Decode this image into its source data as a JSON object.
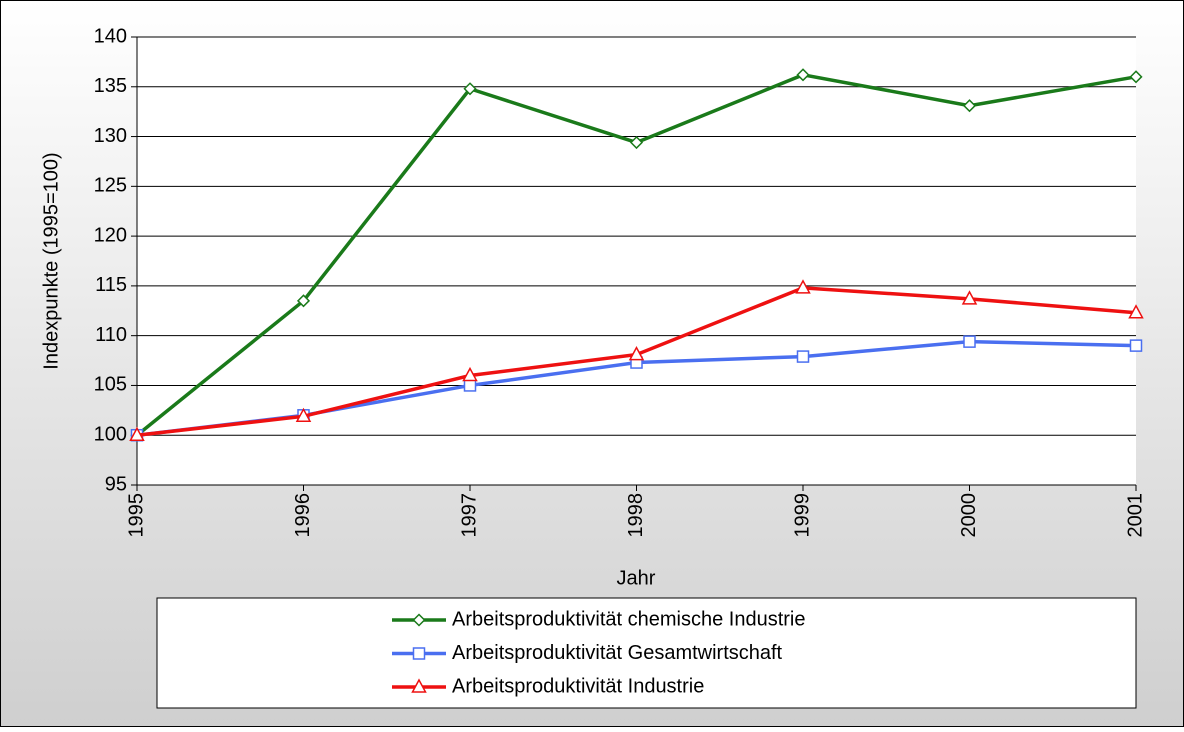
{
  "chart_data": {
    "type": "line",
    "x_label": "Jahr",
    "y_label": "Indexpunkte (1995=100)",
    "x": [
      1995,
      1996,
      1997,
      1998,
      1999,
      2000,
      2001
    ],
    "xlim": [
      1995,
      2001
    ],
    "ylim": [
      95,
      140
    ],
    "yticks": [
      95,
      100,
      105,
      110,
      115,
      120,
      125,
      130,
      135,
      140
    ],
    "grid": true,
    "legend": "bottom",
    "series": [
      {
        "name": "Arbeitsproduktivität chemische Industrie",
        "color": "#1a7a1a",
        "marker": "diamond",
        "values": [
          100,
          113.5,
          134.8,
          129.4,
          136.2,
          133.1,
          136.0
        ]
      },
      {
        "name": "Arbeitsproduktivität Gesamtwirtschaft",
        "color": "#4a6ff0",
        "marker": "square",
        "values": [
          100,
          102,
          105,
          107.3,
          107.9,
          109.4,
          109.0
        ]
      },
      {
        "name": "Arbeitsproduktivität Industrie",
        "color": "#ee1111",
        "marker": "triangle",
        "values": [
          100,
          101.9,
          106,
          108.1,
          114.8,
          113.7,
          112.3
        ]
      }
    ]
  }
}
